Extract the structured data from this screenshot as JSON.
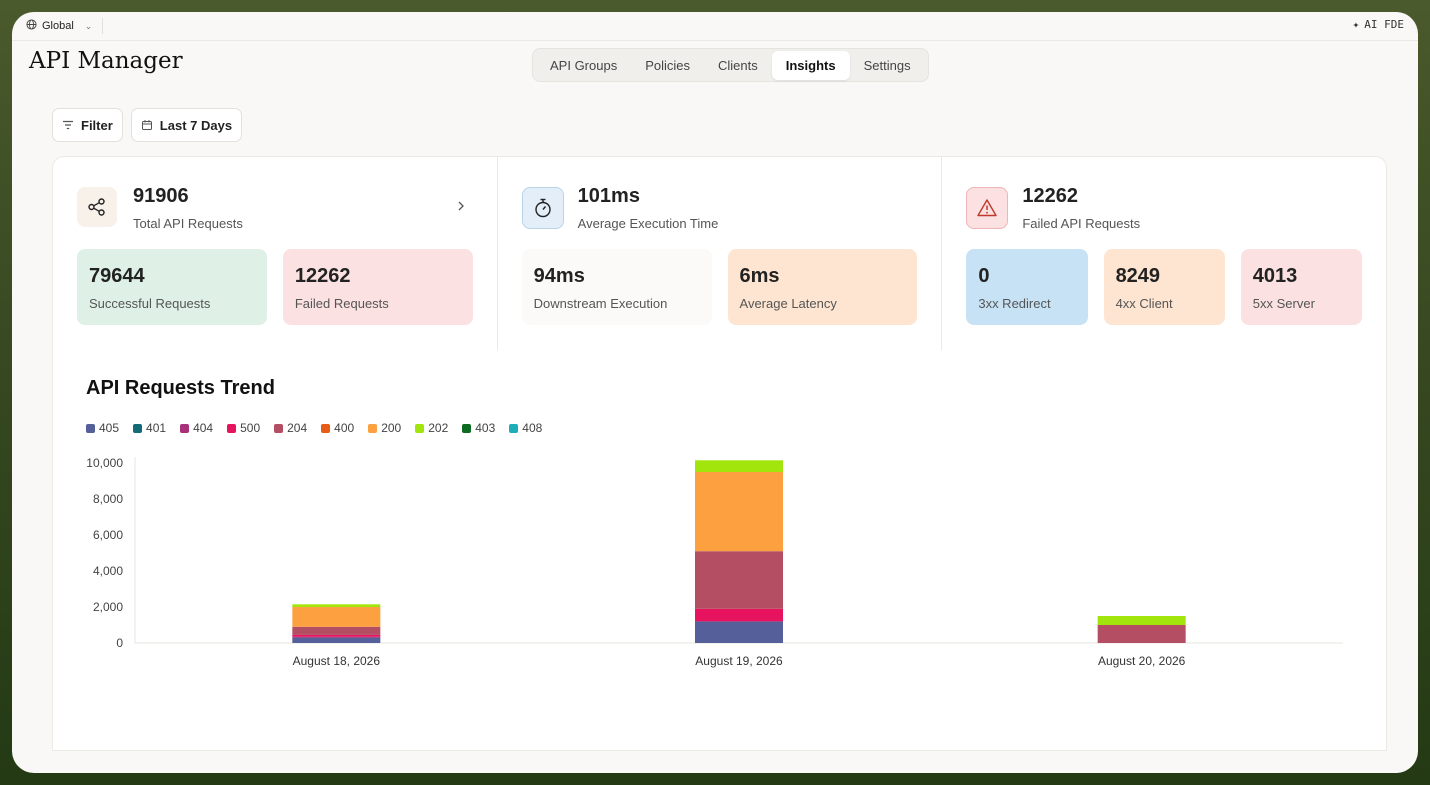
{
  "topbar": {
    "region": "Global",
    "ai_label": "AI FDE"
  },
  "app": {
    "title": "API Manager"
  },
  "tabs": [
    {
      "label": "API Groups",
      "active": false
    },
    {
      "label": "Policies",
      "active": false
    },
    {
      "label": "Clients",
      "active": false
    },
    {
      "label": "Insights",
      "active": true
    },
    {
      "label": "Settings",
      "active": false
    }
  ],
  "toolbar": {
    "filter_label": "Filter",
    "date_label": "Last 7 Days"
  },
  "stats": {
    "requests": {
      "value": "91906",
      "label": "Total API Requests",
      "subs": [
        {
          "value": "79644",
          "label": "Successful Requests",
          "color": "#dff0e6"
        },
        {
          "value": "12262",
          "label": "Failed Requests",
          "color": "#fbe1e1"
        }
      ]
    },
    "execution": {
      "value": "101ms",
      "label": "Average Execution Time",
      "subs": [
        {
          "value": "94ms",
          "label": "Downstream Execution",
          "color": "#fbfaf8"
        },
        {
          "value": "6ms",
          "label": "Average Latency",
          "color": "#fde5d2"
        }
      ]
    },
    "failed": {
      "value": "12262",
      "label": "Failed API Requests",
      "subs": [
        {
          "value": "0",
          "label": "3xx Redirect",
          "color": "#c7e2f5"
        },
        {
          "value": "8249",
          "label": "4xx Client",
          "color": "#fde5d2"
        },
        {
          "value": "4013",
          "label": "5xx Server",
          "color": "#fbe1e1"
        }
      ]
    }
  },
  "chart": {
    "title": "API Requests Trend"
  },
  "chart_data": {
    "type": "bar",
    "stacked": true,
    "title": "API Requests Trend",
    "categories": [
      "August 18, 2026",
      "August 19, 2026",
      "August 20, 2026"
    ],
    "ylim": [
      0,
      10000
    ],
    "yticks": [
      0,
      2000,
      4000,
      6000,
      8000,
      10000
    ],
    "ytick_labels": [
      "0",
      "2,000",
      "4,000",
      "6,000",
      "8,000",
      "10,000"
    ],
    "legend_position": "top-left",
    "series": [
      {
        "name": "405",
        "color": "#555f9a",
        "values": [
          300,
          1200,
          0
        ]
      },
      {
        "name": "401",
        "color": "#136b78",
        "values": [
          0,
          0,
          0
        ]
      },
      {
        "name": "404",
        "color": "#a8327a",
        "values": [
          50,
          0,
          0
        ]
      },
      {
        "name": "500",
        "color": "#e8135f",
        "values": [
          100,
          700,
          0
        ]
      },
      {
        "name": "204",
        "color": "#b44e62",
        "values": [
          450,
          3200,
          1000
        ]
      },
      {
        "name": "400",
        "color": "#e85d15",
        "values": [
          0,
          0,
          0
        ]
      },
      {
        "name": "200",
        "color": "#fca040",
        "values": [
          1100,
          4400,
          0
        ]
      },
      {
        "name": "202",
        "color": "#a2e50c",
        "values": [
          150,
          650,
          500
        ]
      },
      {
        "name": "403",
        "color": "#0d6b1f",
        "values": [
          0,
          0,
          0
        ]
      },
      {
        "name": "408",
        "color": "#1eaeb8",
        "values": [
          0,
          0,
          0
        ]
      }
    ]
  }
}
